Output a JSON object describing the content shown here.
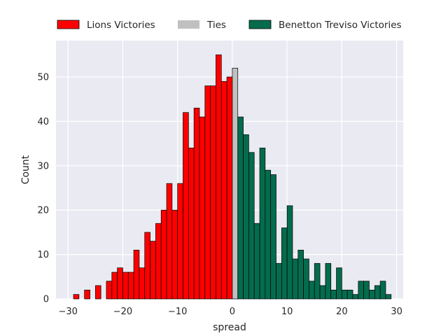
{
  "chart_data": {
    "type": "bar",
    "xlabel": "spread",
    "ylabel": "Count",
    "xlim": [
      -32.2,
      31.2
    ],
    "ylim": [
      0,
      58.2
    ],
    "xticks": [
      -30,
      -20,
      -10,
      0,
      10,
      20,
      30
    ],
    "yticks": [
      0,
      10,
      20,
      30,
      40,
      50
    ],
    "grid": true,
    "legend_position": "top",
    "bin_width": 1,
    "series": [
      {
        "name": "Lions Victories",
        "color": "#ff0000",
        "bins": [
          {
            "x": -29,
            "count": 1
          },
          {
            "x": -28,
            "count": 0
          },
          {
            "x": -27,
            "count": 2
          },
          {
            "x": -26,
            "count": 0
          },
          {
            "x": -25,
            "count": 3
          },
          {
            "x": -24,
            "count": 0
          },
          {
            "x": -23,
            "count": 4
          },
          {
            "x": -22,
            "count": 6
          },
          {
            "x": -21,
            "count": 7
          },
          {
            "x": -20,
            "count": 6
          },
          {
            "x": -19,
            "count": 6
          },
          {
            "x": -18,
            "count": 11
          },
          {
            "x": -17,
            "count": 7
          },
          {
            "x": -16,
            "count": 15
          },
          {
            "x": -15,
            "count": 13
          },
          {
            "x": -14,
            "count": 17
          },
          {
            "x": -13,
            "count": 20
          },
          {
            "x": -12,
            "count": 26
          },
          {
            "x": -11,
            "count": 20
          },
          {
            "x": -10,
            "count": 26
          },
          {
            "x": -9,
            "count": 42
          },
          {
            "x": -8,
            "count": 34
          },
          {
            "x": -7,
            "count": 43
          },
          {
            "x": -6,
            "count": 41
          },
          {
            "x": -5,
            "count": 48
          },
          {
            "x": -4,
            "count": 48
          },
          {
            "x": -3,
            "count": 55
          },
          {
            "x": -2,
            "count": 49
          },
          {
            "x": -1,
            "count": 50
          }
        ]
      },
      {
        "name": "Ties",
        "color": "#c0c0c0",
        "bins": [
          {
            "x": 0,
            "count": 52
          }
        ]
      },
      {
        "name": "Benetton Treviso Victories",
        "color": "#046c4c",
        "bins": [
          {
            "x": 1,
            "count": 41
          },
          {
            "x": 2,
            "count": 37
          },
          {
            "x": 3,
            "count": 33
          },
          {
            "x": 4,
            "count": 17
          },
          {
            "x": 5,
            "count": 34
          },
          {
            "x": 6,
            "count": 29
          },
          {
            "x": 7,
            "count": 28
          },
          {
            "x": 8,
            "count": 8
          },
          {
            "x": 9,
            "count": 16
          },
          {
            "x": 10,
            "count": 21
          },
          {
            "x": 11,
            "count": 9
          },
          {
            "x": 12,
            "count": 11
          },
          {
            "x": 13,
            "count": 9
          },
          {
            "x": 14,
            "count": 4
          },
          {
            "x": 15,
            "count": 8
          },
          {
            "x": 16,
            "count": 3
          },
          {
            "x": 17,
            "count": 8
          },
          {
            "x": 18,
            "count": 2
          },
          {
            "x": 19,
            "count": 7
          },
          {
            "x": 20,
            "count": 2
          },
          {
            "x": 21,
            "count": 2
          },
          {
            "x": 22,
            "count": 1
          },
          {
            "x": 23,
            "count": 4
          },
          {
            "x": 24,
            "count": 4
          },
          {
            "x": 25,
            "count": 2
          },
          {
            "x": 26,
            "count": 3
          },
          {
            "x": 27,
            "count": 4
          },
          {
            "x": 28,
            "count": 1
          }
        ]
      }
    ]
  }
}
